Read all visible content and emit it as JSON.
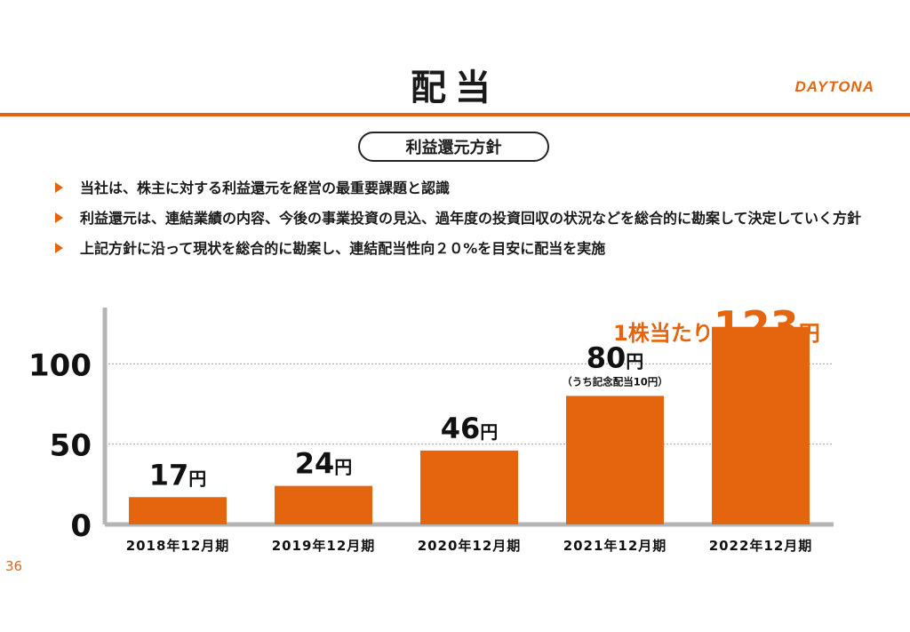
{
  "header": {
    "title": "配当",
    "logo": "DAYTONA",
    "accent_color": "#e4650d"
  },
  "policy": {
    "heading": "利益還元方針",
    "bullets": [
      "当社は、株主に対する利益還元を経営の最重要課題と認識",
      "利益還元は、連結業績の内容、今後の事業投資の見込、過年度の投資回収の状況などを総合的に勘案して決定していく方針",
      "上記方針に沿って現状を総合的に勘案し、連結配当性向２０%を目安に配当を実施"
    ]
  },
  "highlight": {
    "prefix": "1株当たり",
    "value": "123",
    "unit": "円"
  },
  "page_number": "36",
  "chart_data": {
    "type": "bar",
    "categories": [
      "2018年12月期",
      "2019年12月期",
      "2020年12月期",
      "2021年12月期",
      "2022年12月期"
    ],
    "values": [
      17,
      24,
      46,
      80,
      123
    ],
    "value_labels": [
      "17円",
      "24円",
      "46円",
      "80円",
      ""
    ],
    "annotations": [
      {
        "category": "2021年12月期",
        "text": "（うち記念配当10円）"
      }
    ],
    "yticks": [
      0,
      50,
      100
    ],
    "ylim": [
      0,
      135
    ],
    "grid": true,
    "bar_color": "#e4650d",
    "title": "",
    "xlabel": "",
    "ylabel": ""
  }
}
